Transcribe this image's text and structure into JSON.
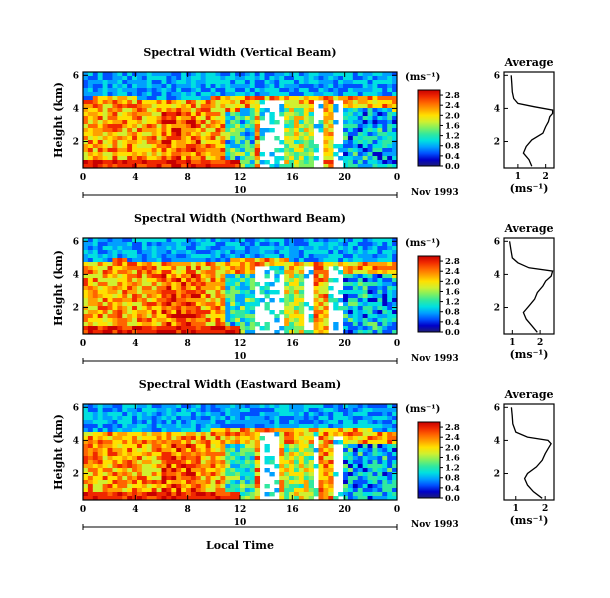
{
  "figure": {
    "xlabel_bottom": "Local Time",
    "date_label": "Nov 1993",
    "day_label": "10",
    "avg_title": "Average",
    "avg_xlabel": "(ms⁻¹)",
    "cb_unit": "(ms⁻¹)",
    "ylabel": "Height (km)"
  },
  "colors": {
    "colormap": [
      "#1e1e78",
      "#0000c8",
      "#0050ff",
      "#00a0ff",
      "#00e0e0",
      "#30e8a0",
      "#80f060",
      "#d0f030",
      "#ffe000",
      "#ffa000",
      "#ff6400",
      "#f02800",
      "#c80000"
    ]
  },
  "chart_data": [
    {
      "type": "heatmap",
      "title": "Spectral Width (Vertical Beam)",
      "xlabel": "",
      "ylabel": "Height (km)",
      "xlim": [
        0,
        24
      ],
      "ylim": [
        0.4,
        6.2
      ],
      "x_ticks": [
        "0",
        "4",
        "8",
        "12",
        "16",
        "20",
        "0"
      ],
      "y_ticks": [
        "2",
        "4",
        "6"
      ],
      "colorbar": {
        "ticks": [
          "0.0",
          "0.4",
          "0.8",
          "1.2",
          "1.6",
          "2.0",
          "2.4",
          "2.8"
        ],
        "range": [
          0,
          3.0
        ]
      },
      "description_layers": {
        "boundary_km_by_hour": [
          [
            0,
            4.1
          ],
          [
            3,
            4.2
          ],
          [
            6,
            4.0
          ],
          [
            9,
            4.1
          ],
          [
            12,
            4.2
          ],
          [
            15,
            4.3
          ],
          [
            18,
            4.3
          ],
          [
            24,
            4.2
          ]
        ],
        "gap_hours": [
          [
            13.5,
            15.5
          ],
          [
            17.5,
            18.2
          ],
          [
            19.0,
            20.0
          ]
        ]
      },
      "average_profile": {
        "title": "Average",
        "xlabel": "(ms⁻¹)",
        "x_ticks": [
          "1",
          "2"
        ],
        "y_ticks": [
          "2",
          "4",
          "6"
        ],
        "xlim": [
          0.5,
          2.3
        ],
        "ylim": [
          0.4,
          6.2
        ],
        "height_km": [
          0.5,
          0.9,
          1.3,
          1.7,
          2.1,
          2.5,
          2.9,
          3.2,
          3.5,
          3.7,
          3.9,
          4.1,
          4.3,
          4.6,
          5.0,
          5.5,
          6.0
        ],
        "width_ms": [
          1.5,
          1.4,
          1.2,
          1.3,
          1.5,
          1.9,
          2.0,
          2.1,
          2.15,
          2.25,
          2.25,
          1.6,
          1.0,
          0.85,
          0.8,
          0.78,
          0.76
        ]
      }
    },
    {
      "type": "heatmap",
      "title": "Spectral Width (Northward Beam)",
      "xlabel": "",
      "ylabel": "Height (km)",
      "xlim": [
        0,
        24
      ],
      "ylim": [
        0.4,
        6.2
      ],
      "x_ticks": [
        "0",
        "4",
        "8",
        "12",
        "16",
        "20",
        "0"
      ],
      "y_ticks": [
        "2",
        "4",
        "6"
      ],
      "colorbar": {
        "ticks": [
          "0.0",
          "0.4",
          "0.8",
          "1.2",
          "1.6",
          "2.0",
          "2.4",
          "2.8"
        ],
        "range": [
          0,
          3.0
        ]
      },
      "description_layers": {
        "boundary_km_by_hour": [
          [
            0,
            4.3
          ],
          [
            3,
            4.4
          ],
          [
            6,
            4.2
          ],
          [
            9,
            4.3
          ],
          [
            12,
            4.4
          ],
          [
            15,
            4.4
          ],
          [
            18,
            4.3
          ],
          [
            24,
            4.2
          ]
        ],
        "gap_hours": [
          [
            13.0,
            15.5
          ],
          [
            17.0,
            17.5
          ],
          [
            18.8,
            20.0
          ]
        ]
      },
      "average_profile": {
        "title": "Average",
        "xlabel": "(ms⁻¹)",
        "x_ticks": [
          "1",
          "2"
        ],
        "y_ticks": [
          "2",
          "4",
          "6"
        ],
        "xlim": [
          0.7,
          2.5
        ],
        "ylim": [
          0.4,
          6.2
        ],
        "height_km": [
          0.5,
          0.9,
          1.3,
          1.7,
          2.1,
          2.5,
          2.9,
          3.3,
          3.6,
          3.9,
          4.2,
          4.4,
          4.7,
          5.0,
          5.5,
          6.0
        ],
        "width_ms": [
          1.9,
          1.7,
          1.5,
          1.4,
          1.6,
          1.8,
          1.9,
          2.1,
          2.2,
          2.4,
          2.45,
          1.6,
          1.2,
          1.0,
          0.95,
          0.9
        ]
      }
    },
    {
      "type": "heatmap",
      "title": "Spectral Width (Eastward Beam)",
      "xlabel": "Local Time",
      "ylabel": "Height (km)",
      "xlim": [
        0,
        24
      ],
      "ylim": [
        0.4,
        6.2
      ],
      "x_ticks": [
        "0",
        "4",
        "8",
        "12",
        "16",
        "20",
        "0"
      ],
      "y_ticks": [
        "2",
        "4",
        "6"
      ],
      "colorbar": {
        "ticks": [
          "0.0",
          "0.4",
          "0.8",
          "1.2",
          "1.6",
          "2.0",
          "2.4",
          "2.8"
        ],
        "range": [
          0,
          3.0
        ]
      },
      "description_layers": {
        "boundary_km_by_hour": [
          [
            0,
            4.0
          ],
          [
            3,
            4.1
          ],
          [
            6,
            4.0
          ],
          [
            9,
            4.1
          ],
          [
            12,
            4.2
          ],
          [
            15,
            4.2
          ],
          [
            18,
            4.2
          ],
          [
            24,
            4.1
          ]
        ],
        "gap_hours": [
          [
            13.5,
            15.0
          ],
          [
            17.5,
            18.0
          ],
          [
            19.0,
            19.8
          ]
        ]
      },
      "average_profile": {
        "title": "Average",
        "xlabel": "(ms⁻¹)",
        "x_ticks": [
          "1",
          "2"
        ],
        "y_ticks": [
          "2",
          "4",
          "6"
        ],
        "xlim": [
          0.6,
          2.3
        ],
        "ylim": [
          0.4,
          6.2
        ],
        "height_km": [
          0.5,
          0.9,
          1.3,
          1.7,
          2.0,
          2.4,
          2.8,
          3.2,
          3.5,
          3.8,
          4.0,
          4.2,
          4.5,
          5.0,
          5.5,
          6.0
        ],
        "width_ms": [
          1.9,
          1.6,
          1.4,
          1.3,
          1.4,
          1.7,
          1.9,
          2.0,
          2.1,
          2.2,
          2.1,
          1.4,
          1.0,
          0.9,
          0.88,
          0.85
        ]
      }
    }
  ]
}
